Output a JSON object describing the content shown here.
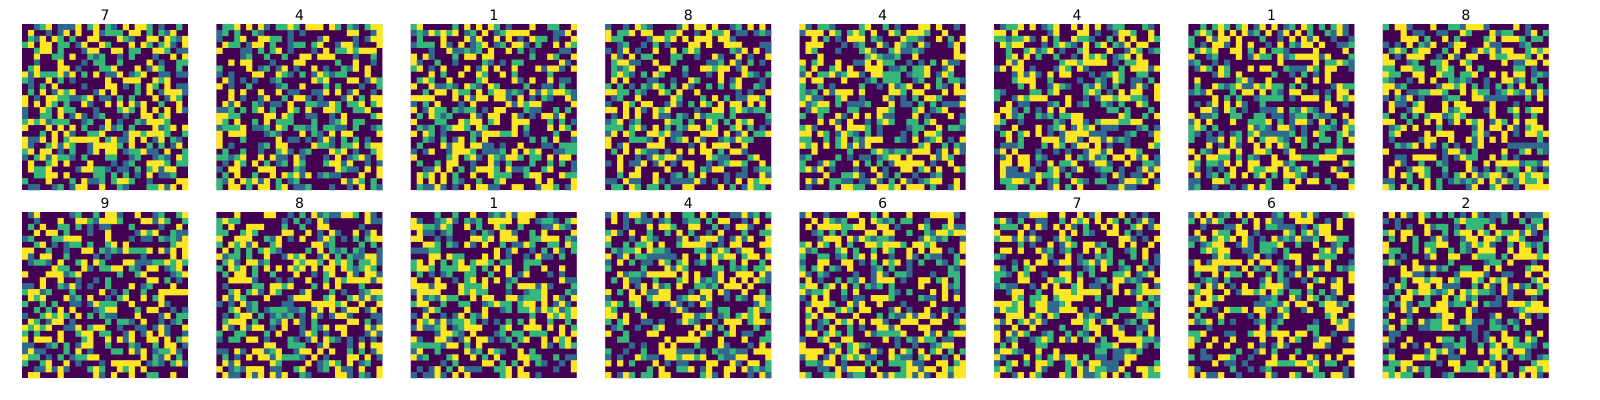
{
  "chart_data": {
    "type": "heatmap",
    "layout": {
      "rows": 2,
      "cols": 8
    },
    "grid": false,
    "axes_visible": false,
    "colormap": "viridis",
    "palette": [
      "#440154",
      "#31688e",
      "#35b779",
      "#fde725"
    ],
    "cells_per_side": 28,
    "panels": [
      {
        "title": "7"
      },
      {
        "title": "4"
      },
      {
        "title": "1"
      },
      {
        "title": "8"
      },
      {
        "title": "4"
      },
      {
        "title": "4"
      },
      {
        "title": "1"
      },
      {
        "title": "8"
      },
      {
        "title": "9"
      },
      {
        "title": "8"
      },
      {
        "title": "1"
      },
      {
        "title": "4"
      },
      {
        "title": "6"
      },
      {
        "title": "7"
      },
      {
        "title": "6"
      },
      {
        "title": "2"
      }
    ]
  }
}
